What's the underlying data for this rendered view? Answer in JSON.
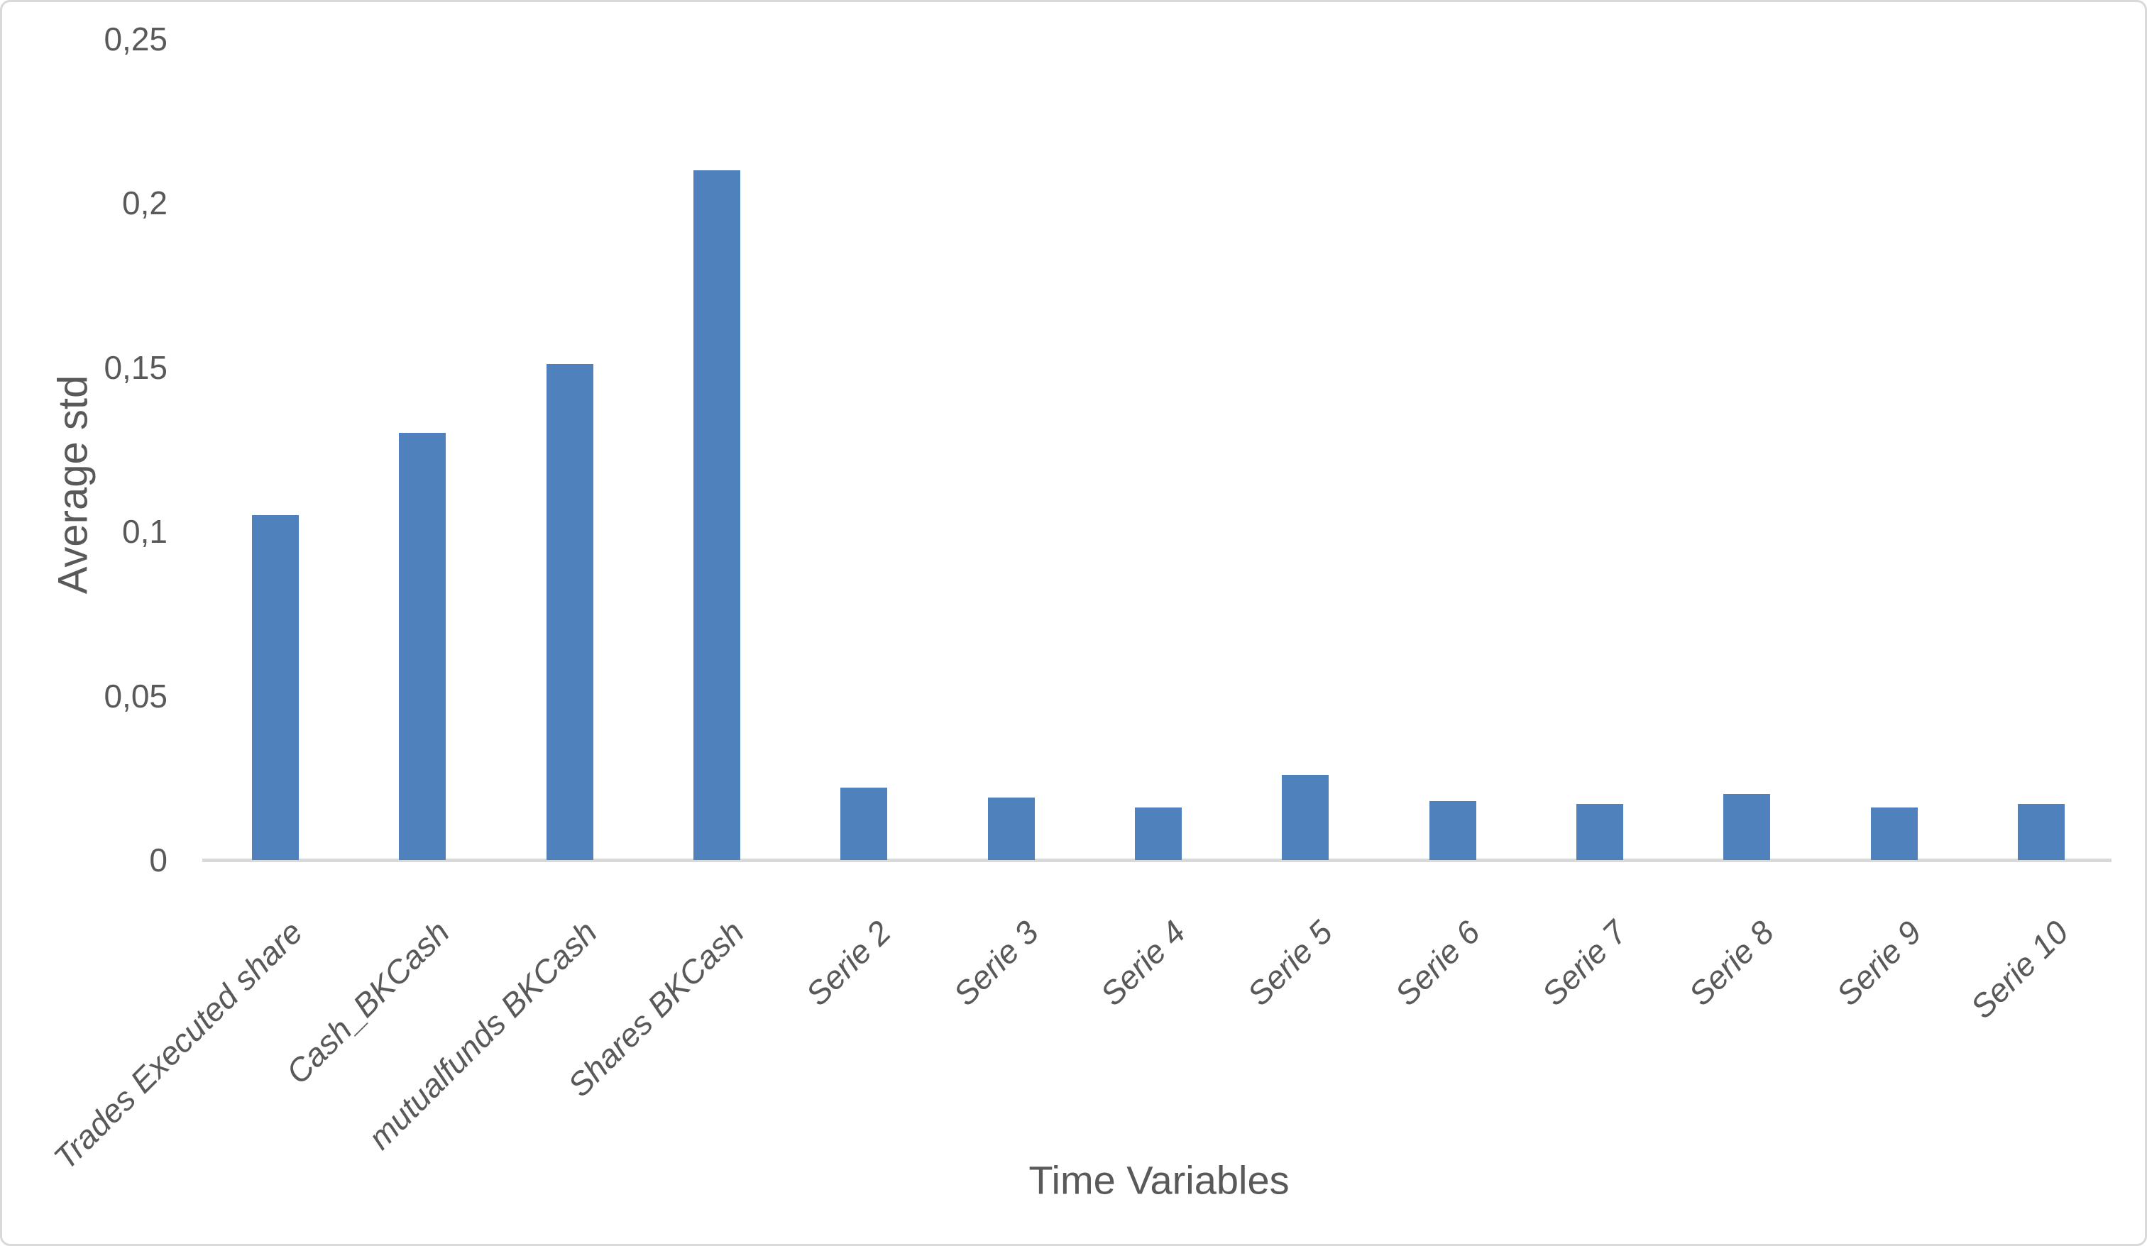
{
  "chart_data": {
    "type": "bar",
    "title": "",
    "xlabel": "Time Variables",
    "ylabel": "Average std",
    "categories": [
      "Trades Executed share",
      "Cash_BKCash",
      "mutualfunds BKCash",
      "Shares BKCash",
      "Serie 2",
      "Serie 3",
      "Serie 4",
      "Serie 5",
      "Serie 6",
      "Serie 7",
      "Serie 8",
      "Serie 9",
      "Serie 10"
    ],
    "values": [
      0.105,
      0.13,
      0.151,
      0.21,
      0.022,
      0.019,
      0.016,
      0.026,
      0.018,
      0.017,
      0.02,
      0.016,
      0.017
    ],
    "y_ticks": [
      {
        "label": "0",
        "value": 0
      },
      {
        "label": "0,05",
        "value": 0.05
      },
      {
        "label": "0,1",
        "value": 0.1
      },
      {
        "label": "0,15",
        "value": 0.15
      },
      {
        "label": "0,2",
        "value": 0.2
      },
      {
        "label": "0,25",
        "value": 0.25
      }
    ],
    "ylim": [
      0,
      0.25
    ],
    "grid": false,
    "legend": "none",
    "decimal_separator": ",",
    "colors": {
      "bar": "#4f81bd",
      "axis_line": "#d9d9d9",
      "text": "#595959",
      "background": "#ffffff",
      "border": "#d9d9d9"
    }
  }
}
